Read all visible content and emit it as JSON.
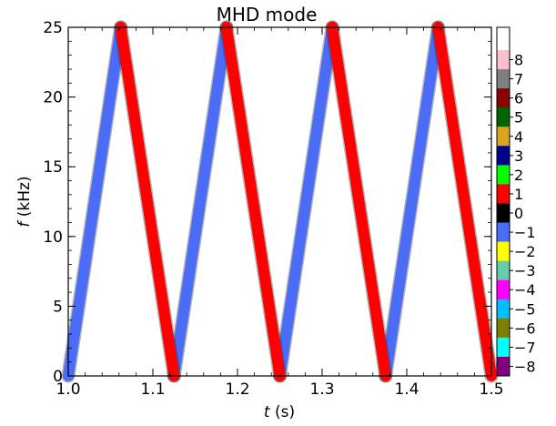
{
  "chart_data": {
    "type": "scatter",
    "title": "MHD mode",
    "xlabel": {
      "italic": "t",
      "rest": " (s)"
    },
    "ylabel": {
      "italic": "f",
      "rest": " (kHz)"
    },
    "xlim": [
      1.0,
      1.5
    ],
    "ylim": [
      0,
      25
    ],
    "x_ticks": [
      "1.0",
      "1.1",
      "1.2",
      "1.3",
      "1.4",
      "1.5"
    ],
    "y_ticks": [
      "0",
      "5",
      "10",
      "15",
      "20",
      "25"
    ],
    "x_tick_values": [
      1.0,
      1.1,
      1.2,
      1.3,
      1.4,
      1.5
    ],
    "y_tick_values": [
      0,
      5,
      10,
      15,
      20,
      25
    ],
    "grid": false,
    "series": [
      {
        "mode": -1,
        "color": "#4a6cf6",
        "segments": [
          [
            [
              1.0,
              0.0
            ],
            [
              1.062,
              25.0
            ]
          ],
          [
            [
              1.125,
              0.0
            ],
            [
              1.187,
              25.0
            ]
          ],
          [
            [
              1.25,
              0.0
            ],
            [
              1.312,
              25.0
            ]
          ],
          [
            [
              1.375,
              0.0
            ],
            [
              1.437,
              25.0
            ]
          ]
        ]
      },
      {
        "mode": 1,
        "color": "#ff0000",
        "segments": [
          [
            [
              1.062,
              25.0
            ],
            [
              1.125,
              0.0
            ]
          ],
          [
            [
              1.187,
              25.0
            ],
            [
              1.25,
              0.0
            ]
          ],
          [
            [
              1.312,
              25.0
            ],
            [
              1.375,
              0.0
            ]
          ],
          [
            [
              1.437,
              25.0
            ],
            [
              1.5,
              0.0
            ]
          ]
        ]
      }
    ],
    "colorbar": {
      "labels": [
        "8",
        "7",
        "6",
        "5",
        "4",
        "3",
        "2",
        "1",
        "0",
        "−1",
        "−2",
        "−3",
        "−4",
        "−5",
        "−6",
        "−7",
        "−8"
      ],
      "colors": [
        "#ffc0cb",
        "#808080",
        "#8b0000",
        "#006400",
        "#daa520",
        "#00008b",
        "#00ff00",
        "#ff0000",
        "#000000",
        "#4a6cf6",
        "#ffff00",
        "#66cdaa",
        "#ff00ff",
        "#00bfff",
        "#808000",
        "#00ffff",
        "#800080"
      ]
    }
  }
}
